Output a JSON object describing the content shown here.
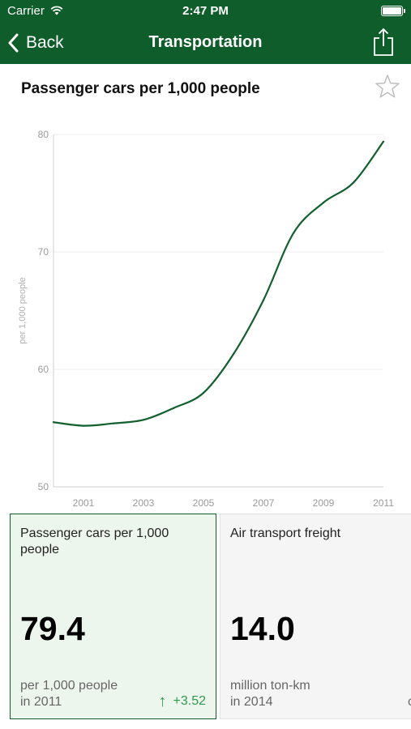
{
  "status_bar": {
    "carrier": "Carrier",
    "time": "2:47 PM"
  },
  "nav": {
    "back_label": "Back",
    "title": "Transportation"
  },
  "heading": "Passenger cars per 1,000 people",
  "colors": {
    "brand_green": "#0f5d2a",
    "line": "#12602e",
    "positive": "#2e9b4e"
  },
  "icons": [
    "wifi-icon",
    "battery-icon",
    "chevron-left-icon",
    "share-icon",
    "star-icon",
    "arrow-up-icon"
  ],
  "chart_data": {
    "type": "line",
    "ylabel": "per 1,000 people",
    "ylim": [
      50,
      80
    ],
    "yticks": [
      "50",
      "60",
      "70",
      "80"
    ],
    "xlim": [
      2000,
      2011
    ],
    "xticks": [
      "2001",
      "2003",
      "2005",
      "2007",
      "2009",
      "2011"
    ],
    "grid": true,
    "series": [
      {
        "x": [
          2000,
          2001,
          2002,
          2003,
          2004,
          2005,
          2006,
          2007,
          2008,
          2009,
          2010,
          2011
        ],
        "values": [
          55.5,
          55.2,
          55.4,
          55.7,
          56.7,
          58.0,
          61.3,
          65.9,
          71.6,
          74.2,
          75.9,
          79.4
        ]
      }
    ]
  },
  "cards": [
    {
      "title": "Passenger cars per 1,000 people",
      "value": "79.4",
      "unit": "per 1,000 people",
      "year": "in 2011",
      "change": "+3.52",
      "selected": true
    },
    {
      "title": "Air transport freight",
      "value": "14.0",
      "unit": "million ton-km",
      "year": "in 2014",
      "peek": "c",
      "selected": false
    }
  ]
}
